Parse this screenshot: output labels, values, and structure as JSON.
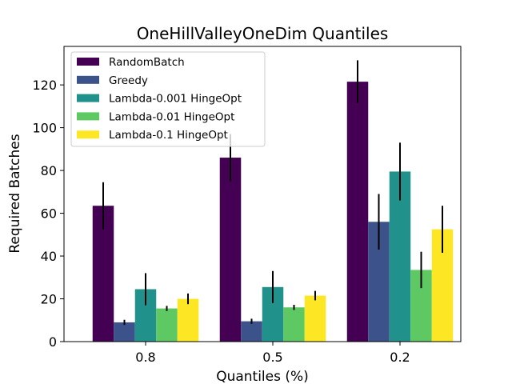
{
  "chart_data": {
    "type": "bar",
    "title": "OneHillValleyOneDim Quantiles",
    "xlabel": "Quantiles (%)",
    "ylabel": "Required Batches",
    "categories": [
      "0.8",
      "0.5",
      "0.2"
    ],
    "ylim": [
      0,
      138
    ],
    "yticks": [
      0,
      20,
      40,
      60,
      80,
      100,
      120
    ],
    "grid": false,
    "legend_position": "top-left",
    "series": [
      {
        "name": "RandomBatch",
        "color": "#440154",
        "values": [
          63.5,
          86,
          121.5
        ],
        "errors": [
          11,
          11,
          10
        ]
      },
      {
        "name": "Greedy",
        "color": "#3b528b",
        "values": [
          9,
          9.5,
          56
        ],
        "errors": [
          1.2,
          1.2,
          13
        ]
      },
      {
        "name": "Lambda-0.001 HingeOpt",
        "color": "#21918c",
        "values": [
          24.5,
          25.5,
          79.5
        ],
        "errors": [
          7.5,
          7.5,
          13.5
        ]
      },
      {
        "name": "Lambda-0.01 HingeOpt",
        "color": "#5ec962",
        "values": [
          15.5,
          16,
          33.5
        ],
        "errors": [
          1.2,
          1.2,
          8.5
        ]
      },
      {
        "name": "Lambda-0.1 HingeOpt",
        "color": "#fde725",
        "values": [
          20,
          21.5,
          52.5
        ],
        "errors": [
          2.5,
          2.2,
          11
        ]
      }
    ]
  }
}
